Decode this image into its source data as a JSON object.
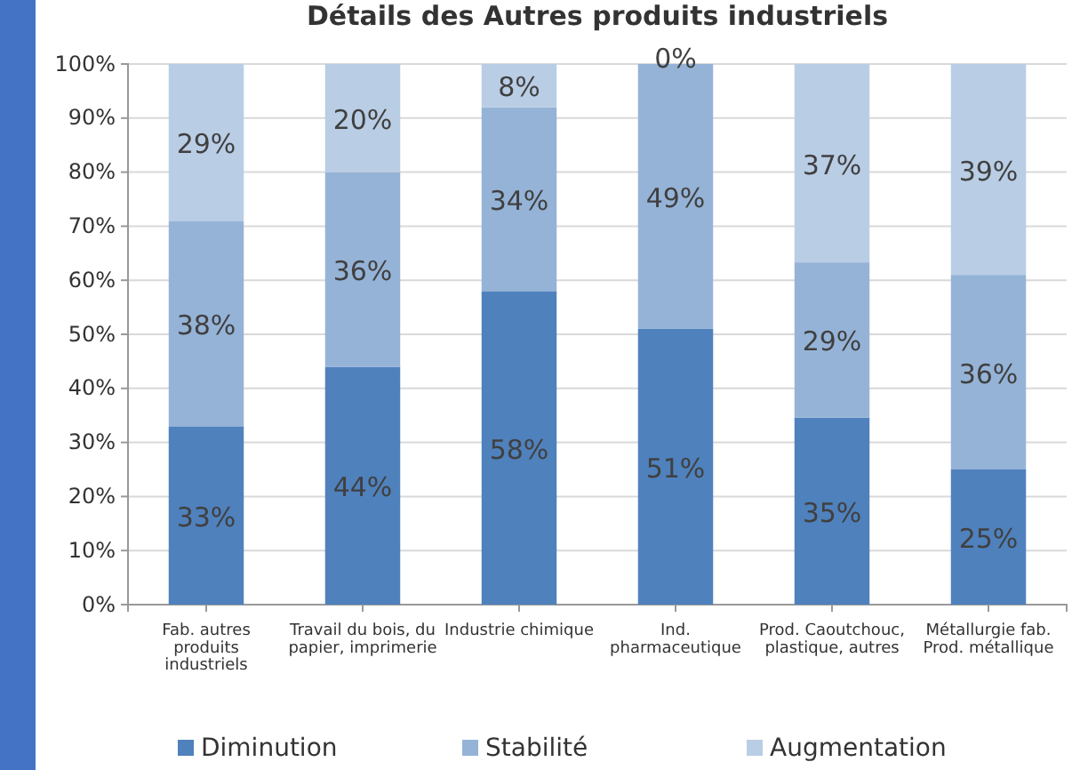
{
  "chart_data": {
    "type": "bar",
    "title": "Détails des Autres produits industriels",
    "stacked": true,
    "categories": [
      "Fab. autres produits industriels",
      "Travail du bois, du papier, imprimerie",
      "Industrie chimique",
      "Ind. pharmaceutique",
      "Prod. Caoutchouc, plastique, autres",
      "Métallurgie fab. Prod. métallique"
    ],
    "series": [
      {
        "name": "Diminution",
        "color": "#4f81bd",
        "values": [
          33,
          44,
          58,
          51,
          34.6,
          25
        ],
        "value_labels": [
          "33%",
          "44%",
          "58%",
          "51%",
          "35%",
          "25%"
        ]
      },
      {
        "name": "Stabilité",
        "color": "#95b3d7",
        "values": [
          38,
          36,
          34,
          49,
          28.7,
          36
        ],
        "value_labels": [
          "38%",
          "36%",
          "34%",
          "49%",
          "29%",
          "36%"
        ]
      },
      {
        "name": "Augmentation",
        "color": "#b9cde5",
        "values": [
          29,
          20,
          8,
          0,
          36.7,
          39
        ],
        "value_labels": [
          "29%",
          "20%",
          "8%",
          "0%",
          "37%",
          "39%"
        ]
      }
    ],
    "ylim": [
      0,
      100
    ],
    "yticks": [
      {
        "value": 0,
        "label": "0%"
      },
      {
        "value": 10,
        "label": "10%"
      },
      {
        "value": 20,
        "label": "20%"
      },
      {
        "value": 30,
        "label": "30%"
      },
      {
        "value": 40,
        "label": "40%"
      },
      {
        "value": 50,
        "label": "50%"
      },
      {
        "value": 60,
        "label": "60%"
      },
      {
        "value": 70,
        "label": "70%"
      },
      {
        "value": 80,
        "label": "80%"
      },
      {
        "value": 90,
        "label": "90%"
      },
      {
        "value": 100,
        "label": "100%"
      }
    ],
    "grid": "y",
    "legend": "bottom"
  }
}
